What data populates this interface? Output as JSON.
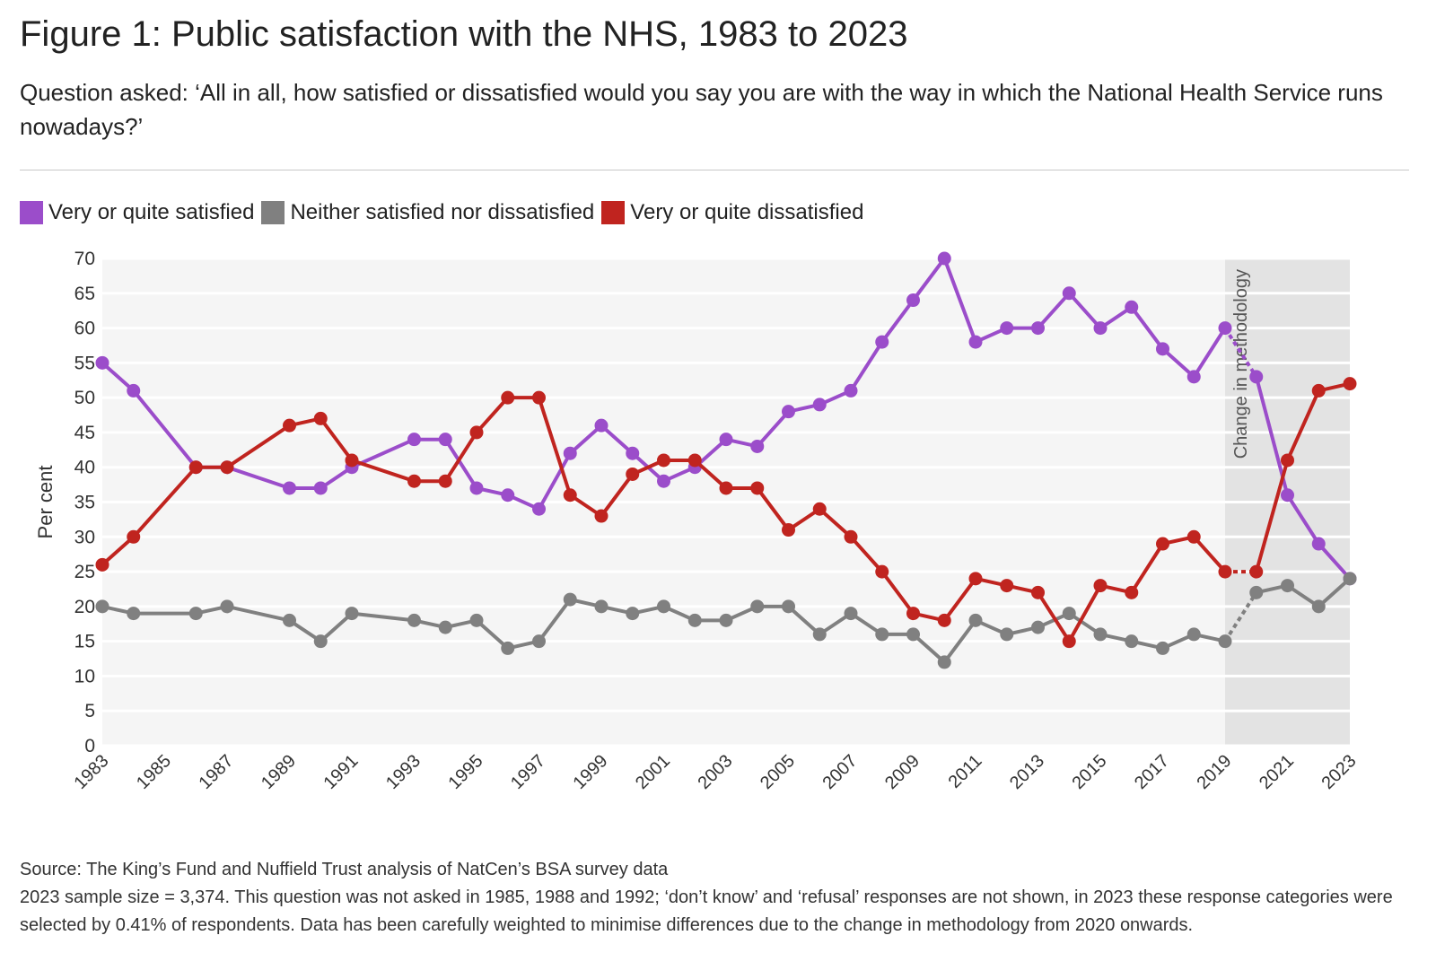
{
  "title": "Figure 1: Public satisfaction with the NHS, 1983 to 2023",
  "subtitle": "Question asked: ‘All in all, how satisfied or dissatisfied would you say you are with the way in which the National Health Service runs nowadays?’",
  "legend": [
    {
      "label": "Very or quite satisfied",
      "color": "#9b4dca"
    },
    {
      "label": "Neither satisfied nor dissatisfied",
      "color": "#808080"
    },
    {
      "label": "Very or quite dissatisfied",
      "color": "#c0241f"
    }
  ],
  "footer": {
    "source": "Source: The King’s Fund and Nuffield Trust analysis of NatCen’s BSA survey data",
    "note": "2023 sample size = 3,374. This question was not asked in 1985, 1988 and 1992; ‘don’t know’ and ‘refusal’ responses are not shown, in 2023 these response categories were selected by 0.41% of respondents. Data has been carefully weighted to minimise differences due to the change in methodology from 2020 onwards."
  },
  "chart_data": {
    "type": "line",
    "ylabel": "Per cent",
    "xlabel": "",
    "ylim": [
      0,
      70
    ],
    "yticks": [
      0,
      5,
      10,
      15,
      20,
      25,
      30,
      35,
      40,
      45,
      50,
      55,
      60,
      65,
      70
    ],
    "xlim": [
      1983,
      2023
    ],
    "xticks": [
      1983,
      1985,
      1987,
      1989,
      1991,
      1993,
      1995,
      1997,
      1999,
      2001,
      2003,
      2005,
      2007,
      2009,
      2011,
      2013,
      2015,
      2017,
      2019,
      2021,
      2023
    ],
    "grid": true,
    "legend_position": "top-left",
    "annotation": {
      "label": "Change in methodology",
      "x_range": [
        2019,
        2023
      ],
      "color": "#e3e3e3"
    },
    "break_between": [
      2019,
      2020
    ],
    "x": [
      1983,
      1984,
      1986,
      1987,
      1989,
      1990,
      1991,
      1993,
      1994,
      1995,
      1996,
      1997,
      1998,
      1999,
      2000,
      2001,
      2002,
      2003,
      2004,
      2005,
      2006,
      2007,
      2008,
      2009,
      2010,
      2011,
      2012,
      2013,
      2014,
      2015,
      2016,
      2017,
      2018,
      2019,
      2020,
      2021,
      2022,
      2023
    ],
    "series": [
      {
        "name": "Very or quite satisfied",
        "color": "#9b4dca",
        "values": [
          55,
          51,
          40,
          40,
          37,
          37,
          40,
          44,
          44,
          37,
          36,
          34,
          42,
          46,
          42,
          38,
          40,
          44,
          43,
          48,
          49,
          51,
          58,
          64,
          70,
          58,
          60,
          60,
          65,
          60,
          63,
          57,
          53,
          60,
          53,
          36,
          29,
          24
        ]
      },
      {
        "name": "Neither satisfied nor dissatisfied",
        "color": "#808080",
        "values": [
          20,
          19,
          19,
          20,
          18,
          15,
          19,
          18,
          17,
          18,
          14,
          15,
          21,
          20,
          19,
          20,
          18,
          18,
          20,
          20,
          16,
          19,
          16,
          16,
          12,
          18,
          16,
          17,
          19,
          16,
          15,
          14,
          16,
          15,
          22,
          23,
          20,
          24
        ]
      },
      {
        "name": "Very or quite dissatisfied",
        "color": "#c0241f",
        "values": [
          26,
          30,
          40,
          40,
          46,
          47,
          41,
          38,
          38,
          45,
          50,
          50,
          36,
          33,
          39,
          41,
          41,
          37,
          37,
          31,
          34,
          30,
          25,
          19,
          18,
          24,
          23,
          22,
          15,
          23,
          22,
          29,
          30,
          25,
          25,
          41,
          51,
          52
        ]
      }
    ]
  }
}
